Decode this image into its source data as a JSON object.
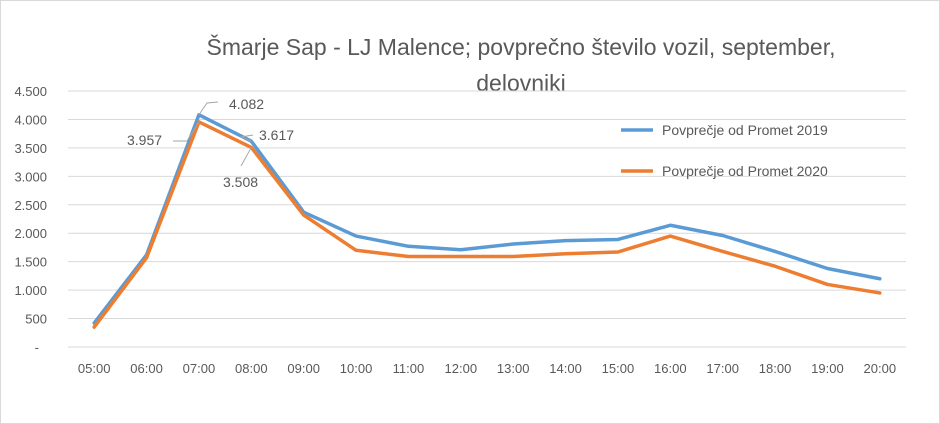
{
  "chart_data": {
    "type": "line",
    "title": "Šmarje Sap - LJ Malence; povprečno število vozil, september, delovniki",
    "title_lines": [
      "Šmarje Sap - LJ Malence; povprečno število vozil, september,",
      "delovniki"
    ],
    "xlabel": "",
    "ylabel": "",
    "categories": [
      "05:00",
      "06:00",
      "07:00",
      "08:00",
      "09:00",
      "10:00",
      "11:00",
      "12:00",
      "13:00",
      "14:00",
      "15:00",
      "16:00",
      "17:00",
      "18:00",
      "19:00",
      "20:00"
    ],
    "yticks": [
      0,
      500,
      1000,
      1500,
      2000,
      2500,
      3000,
      3500,
      4000,
      4500
    ],
    "ytick_labels": [
      "-",
      "500",
      "1.000",
      "1.500",
      "2.000",
      "2.500",
      "3.000",
      "3.500",
      "4.000",
      "4.500"
    ],
    "ylim": [
      0,
      4500
    ],
    "grid": true,
    "legend_position": "right",
    "series": [
      {
        "name": "Povprečje od Promet 2019",
        "color": "#5b9bd5",
        "values": [
          420,
          1620,
          4082,
          3617,
          2370,
          1950,
          1770,
          1710,
          1810,
          1870,
          1890,
          2140,
          1960,
          1680,
          1380,
          1200
        ],
        "labels": [
          {
            "index": 2,
            "text": "4.082"
          },
          {
            "index": 3,
            "text": "3.617"
          }
        ]
      },
      {
        "name": "Povprečje od Promet 2020",
        "color": "#ed7d31",
        "values": [
          350,
          1570,
          3957,
          3508,
          2320,
          1700,
          1590,
          1590,
          1590,
          1640,
          1670,
          1950,
          1680,
          1420,
          1100,
          950
        ],
        "labels": [
          {
            "index": 2,
            "text": "3.957"
          },
          {
            "index": 3,
            "text": "3.508"
          }
        ]
      }
    ]
  }
}
